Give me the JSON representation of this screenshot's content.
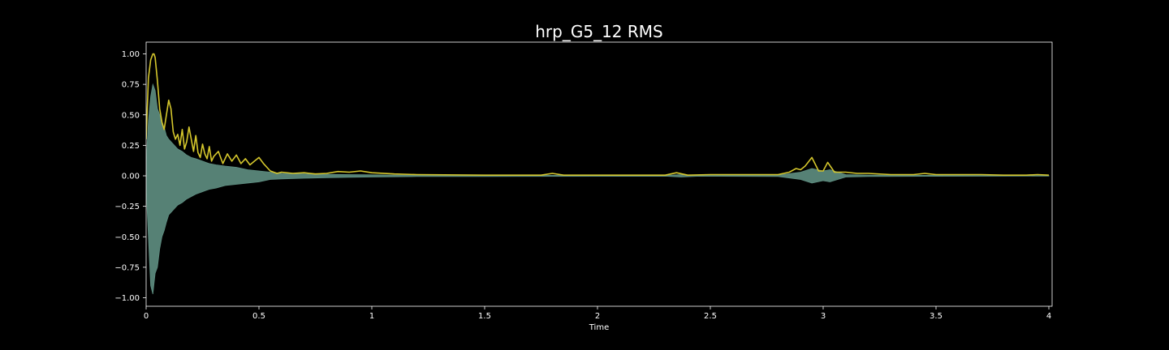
{
  "chart_data": {
    "type": "line",
    "title": "hrp_G5_12 RMS",
    "xlabel": "Time",
    "ylabel": "",
    "xlim": [
      0,
      4.0
    ],
    "ylim": [
      -1.05,
      1.1
    ],
    "x_ticks": [
      0,
      0.5,
      1,
      1.5,
      2,
      2.5,
      3,
      3.5,
      4
    ],
    "x_tick_labels": [
      "0",
      "0.5",
      "1",
      "1.5",
      "2",
      "2.5",
      "3",
      "3.5",
      "4"
    ],
    "y_ticks": [
      1.0,
      0.75,
      0.5,
      0.25,
      0.0,
      -0.25,
      -0.5,
      -0.75,
      -1.0
    ],
    "y_tick_labels": [
      "1.00",
      "0.75",
      "0.50",
      "0.25",
      "0.00",
      "−0.25",
      "−0.50",
      "−0.75",
      "−1.00"
    ],
    "grid": false,
    "colors": {
      "background": "#000000",
      "axes": "#ffffff",
      "waveform": "#5f8f82",
      "rms": "#d4c62c"
    },
    "series": [
      {
        "kind": "waveform-envelope",
        "x": [
          0,
          0.01,
          0.02,
          0.03,
          0.04,
          0.05,
          0.06,
          0.07,
          0.08,
          0.09,
          0.1,
          0.12,
          0.14,
          0.16,
          0.18,
          0.2,
          0.22,
          0.25,
          0.28,
          0.31,
          0.35,
          0.4,
          0.45,
          0.5,
          0.55,
          0.6,
          0.7,
          0.8,
          0.9,
          1.0,
          1.1,
          1.2,
          1.5,
          2.0,
          2.3,
          2.37,
          2.45,
          2.8,
          2.9,
          2.95,
          3.0,
          3.03,
          3.1,
          3.2,
          3.5,
          4.0
        ],
        "upper": [
          0.1,
          0.45,
          0.65,
          0.75,
          0.7,
          0.55,
          0.5,
          0.42,
          0.4,
          0.33,
          0.3,
          0.26,
          0.22,
          0.2,
          0.17,
          0.15,
          0.14,
          0.12,
          0.1,
          0.09,
          0.08,
          0.07,
          0.05,
          0.04,
          0.03,
          0.02,
          0.015,
          0.012,
          0.01,
          0.008,
          0.006,
          0.005,
          0.004,
          0.003,
          0.003,
          0.01,
          0.003,
          0.005,
          0.03,
          0.06,
          0.04,
          0.05,
          0.01,
          0.006,
          0.004,
          0.002
        ],
        "lower": [
          -0.1,
          -0.5,
          -0.9,
          -0.97,
          -0.8,
          -0.75,
          -0.6,
          -0.5,
          -0.45,
          -0.38,
          -0.32,
          -0.28,
          -0.24,
          -0.22,
          -0.19,
          -0.17,
          -0.15,
          -0.13,
          -0.11,
          -0.1,
          -0.08,
          -0.07,
          -0.06,
          -0.05,
          -0.03,
          -0.025,
          -0.02,
          -0.015,
          -0.012,
          -0.01,
          -0.008,
          -0.006,
          -0.005,
          -0.004,
          -0.003,
          -0.01,
          -0.003,
          -0.005,
          -0.03,
          -0.06,
          -0.04,
          -0.05,
          -0.01,
          -0.006,
          -0.004,
          -0.002
        ]
      },
      {
        "kind": "rms",
        "x": [
          0,
          0.01,
          0.02,
          0.03,
          0.035,
          0.04,
          0.05,
          0.06,
          0.07,
          0.08,
          0.09,
          0.1,
          0.11,
          0.12,
          0.13,
          0.14,
          0.15,
          0.16,
          0.17,
          0.18,
          0.19,
          0.2,
          0.21,
          0.22,
          0.23,
          0.24,
          0.25,
          0.26,
          0.27,
          0.28,
          0.29,
          0.3,
          0.32,
          0.34,
          0.36,
          0.38,
          0.4,
          0.42,
          0.44,
          0.46,
          0.48,
          0.5,
          0.52,
          0.55,
          0.58,
          0.6,
          0.65,
          0.7,
          0.75,
          0.8,
          0.85,
          0.9,
          0.95,
          1.0,
          1.1,
          1.2,
          1.5,
          1.75,
          1.8,
          1.85,
          2.0,
          2.3,
          2.35,
          2.4,
          2.5,
          2.8,
          2.85,
          2.88,
          2.9,
          2.92,
          2.95,
          2.98,
          3.0,
          3.02,
          3.05,
          3.1,
          3.15,
          3.2,
          3.3,
          3.4,
          3.45,
          3.5,
          3.6,
          3.7,
          3.8,
          3.9,
          3.95,
          4.0
        ],
        "values": [
          0.3,
          0.8,
          0.95,
          1.0,
          1.0,
          0.97,
          0.78,
          0.55,
          0.44,
          0.38,
          0.5,
          0.62,
          0.55,
          0.36,
          0.3,
          0.34,
          0.25,
          0.38,
          0.22,
          0.28,
          0.4,
          0.3,
          0.2,
          0.33,
          0.19,
          0.15,
          0.26,
          0.18,
          0.14,
          0.24,
          0.12,
          0.16,
          0.2,
          0.1,
          0.18,
          0.12,
          0.17,
          0.1,
          0.14,
          0.09,
          0.12,
          0.15,
          0.1,
          0.04,
          0.02,
          0.03,
          0.02,
          0.025,
          0.015,
          0.02,
          0.035,
          0.03,
          0.04,
          0.025,
          0.015,
          0.01,
          0.005,
          0.005,
          0.02,
          0.005,
          0.005,
          0.005,
          0.025,
          0.005,
          0.01,
          0.01,
          0.03,
          0.06,
          0.05,
          0.08,
          0.15,
          0.04,
          0.04,
          0.11,
          0.03,
          0.03,
          0.02,
          0.02,
          0.01,
          0.01,
          0.02,
          0.01,
          0.01,
          0.01,
          0.005,
          0.005,
          0.01,
          0.005
        ]
      }
    ]
  }
}
